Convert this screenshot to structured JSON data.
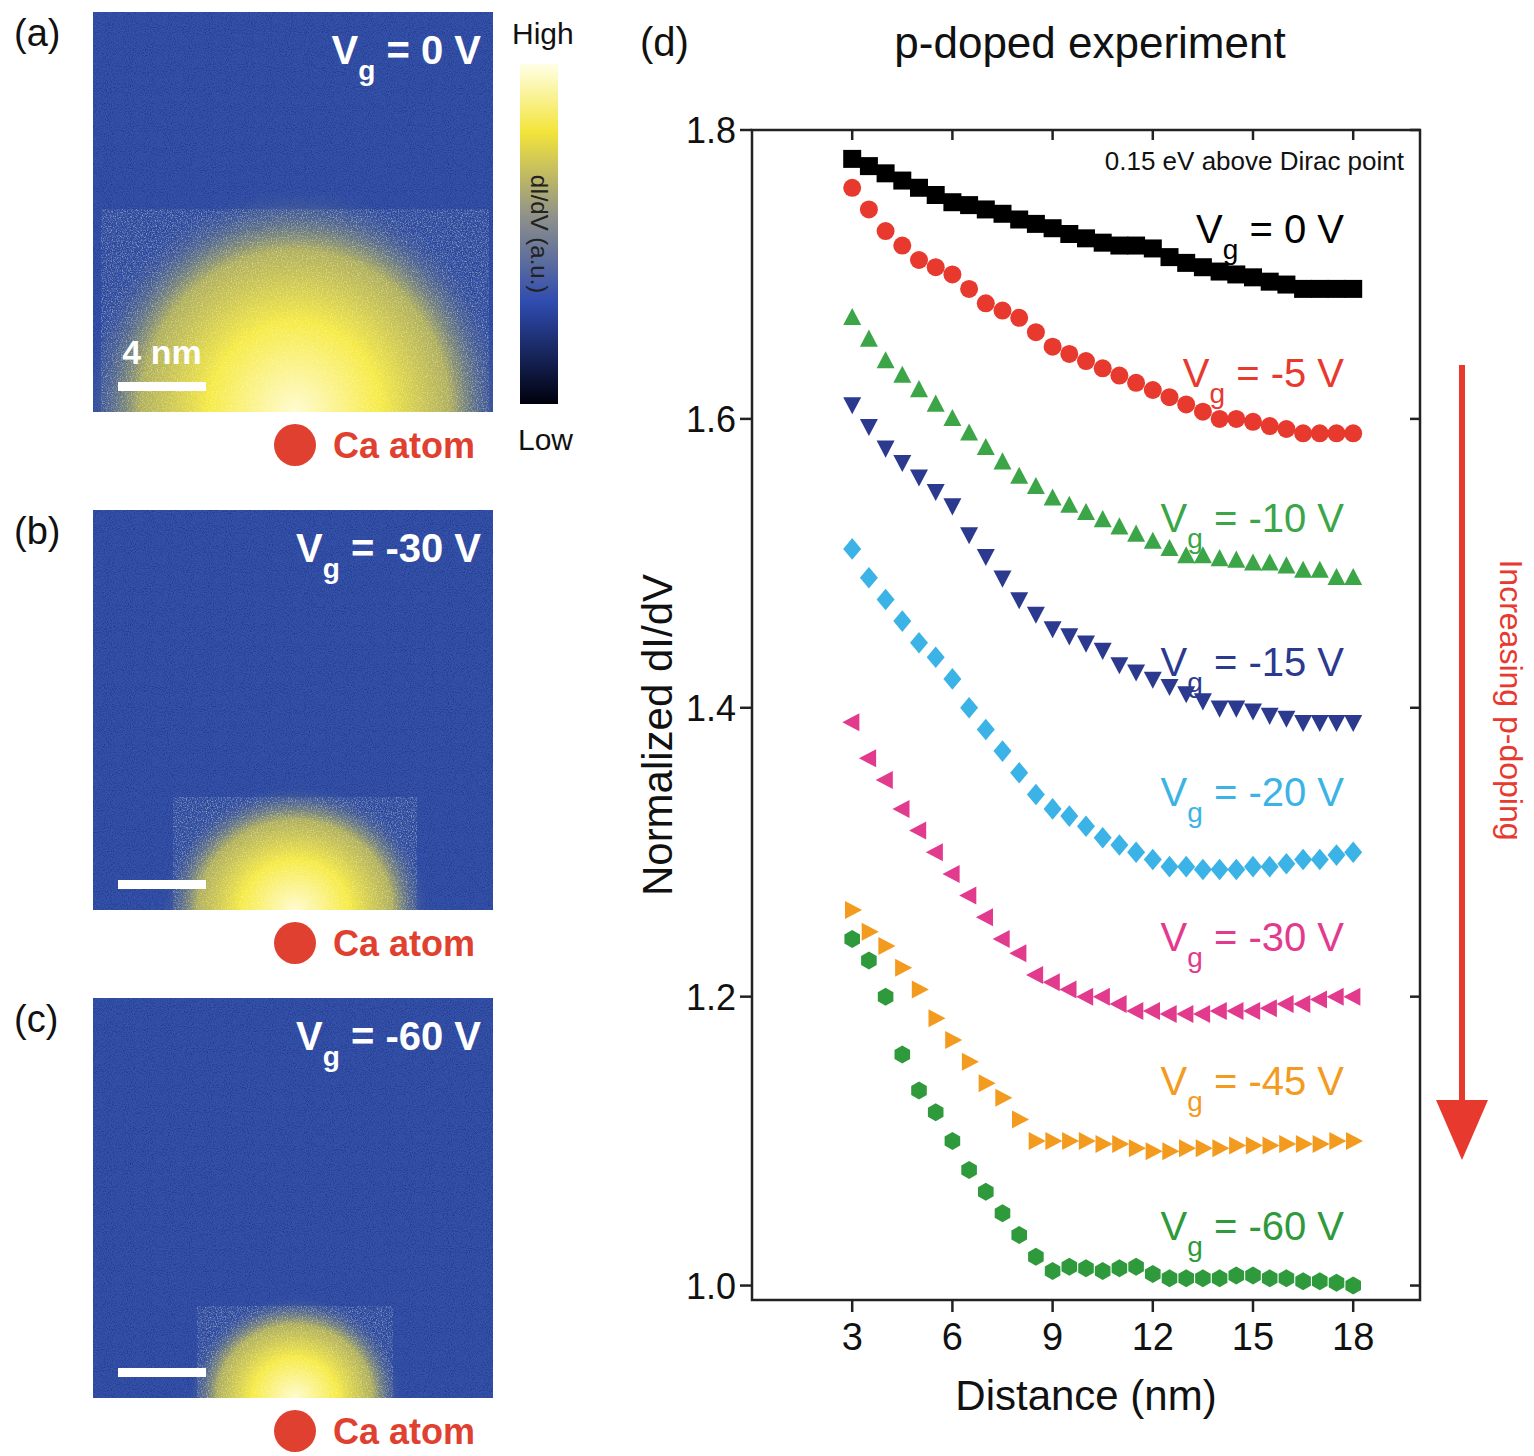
{
  "chart_data": [
    {
      "type": "image",
      "panel": "(a)",
      "title": "Vg = 0 V",
      "scale_bar": "4 nm",
      "marker_label": "Ca atom",
      "colorbar": {
        "label": "dI/dV (a.u.)",
        "high": "High",
        "low": "Low"
      }
    },
    {
      "type": "image",
      "panel": "(b)",
      "title": "Vg = -30 V",
      "marker_label": "Ca atom"
    },
    {
      "type": "image",
      "panel": "(c)",
      "title": "Vg = -60 V",
      "marker_label": "Ca atom"
    },
    {
      "type": "scatter",
      "panel": "(d)",
      "title": "p-doped experiment",
      "subtitle": "0.15 eV above Dirac point",
      "x_label": "Distance (nm)",
      "y_label": "Normalized dI/dV",
      "annotation": "Increasing p-doping",
      "xlim": [
        0,
        20
      ],
      "ylim": [
        0.99,
        1.8
      ],
      "xticks": [
        3,
        6,
        9,
        12,
        15,
        18
      ],
      "yticks": [
        {
          "value": 1,
          "label": "1.0"
        },
        1.2,
        1.4,
        1.6,
        1.8
      ],
      "x": [
        3,
        3.5,
        4,
        4.5,
        5,
        5.5,
        6,
        6.5,
        7,
        7.5,
        8,
        8.5,
        9,
        9.5,
        10,
        10.5,
        11,
        11.5,
        12,
        12.5,
        13,
        13.5,
        14,
        14.5,
        15,
        15.5,
        16,
        16.5,
        17,
        17.5,
        18
      ],
      "series": [
        {
          "name": "Vg = 0 V",
          "color": "#000000",
          "marker": "square",
          "values": [
            1.78,
            1.775,
            1.77,
            1.765,
            1.76,
            1.755,
            1.75,
            1.748,
            1.745,
            1.742,
            1.738,
            1.735,
            1.732,
            1.728,
            1.725,
            1.722,
            1.72,
            1.72,
            1.718,
            1.712,
            1.708,
            1.705,
            1.702,
            1.7,
            1.698,
            1.695,
            1.693,
            1.69,
            1.69,
            1.69,
            1.69
          ]
        },
        {
          "name": "Vg = -5 V",
          "color": "#e8392f",
          "marker": "circle",
          "values": [
            1.76,
            1.745,
            1.73,
            1.72,
            1.71,
            1.705,
            1.7,
            1.69,
            1.68,
            1.675,
            1.67,
            1.66,
            1.65,
            1.645,
            1.64,
            1.635,
            1.63,
            1.625,
            1.62,
            1.615,
            1.61,
            1.605,
            1.6,
            1.6,
            1.598,
            1.595,
            1.593,
            1.59,
            1.59,
            1.59,
            1.59
          ]
        },
        {
          "name": "Vg = -10 V",
          "color": "#3ba548",
          "marker": "triangle-up",
          "values": [
            1.67,
            1.655,
            1.64,
            1.63,
            1.62,
            1.61,
            1.6,
            1.59,
            1.58,
            1.57,
            1.56,
            1.553,
            1.545,
            1.54,
            1.535,
            1.53,
            1.525,
            1.52,
            1.515,
            1.51,
            1.505,
            1.505,
            1.503,
            1.502,
            1.5,
            1.5,
            1.498,
            1.495,
            1.495,
            1.49,
            1.49
          ]
        },
        {
          "name": "Vg = -15 V",
          "color": "#2b3a8f",
          "marker": "triangle-down",
          "values": [
            1.61,
            1.595,
            1.58,
            1.57,
            1.56,
            1.55,
            1.54,
            1.52,
            1.505,
            1.49,
            1.475,
            1.465,
            1.455,
            1.45,
            1.445,
            1.44,
            1.43,
            1.425,
            1.42,
            1.415,
            1.41,
            1.405,
            1.4,
            1.4,
            1.398,
            1.395,
            1.393,
            1.39,
            1.39,
            1.39,
            1.39
          ]
        },
        {
          "name": "Vg = -20 V",
          "color": "#3cb3e6",
          "marker": "diamond",
          "values": [
            1.51,
            1.49,
            1.475,
            1.46,
            1.445,
            1.435,
            1.42,
            1.4,
            1.385,
            1.37,
            1.355,
            1.34,
            1.33,
            1.325,
            1.318,
            1.31,
            1.305,
            1.3,
            1.295,
            1.29,
            1.29,
            1.288,
            1.288,
            1.288,
            1.29,
            1.29,
            1.292,
            1.295,
            1.295,
            1.298,
            1.3
          ]
        },
        {
          "name": "Vg = -30 V",
          "color": "#e23b8e",
          "marker": "triangle-left",
          "values": [
            1.39,
            1.365,
            1.35,
            1.33,
            1.315,
            1.3,
            1.285,
            1.27,
            1.255,
            1.24,
            1.23,
            1.215,
            1.21,
            1.205,
            1.2,
            1.2,
            1.195,
            1.19,
            1.19,
            1.188,
            1.188,
            1.188,
            1.19,
            1.19,
            1.19,
            1.192,
            1.195,
            1.195,
            1.198,
            1.2,
            1.2
          ]
        },
        {
          "name": "Vg = -45 V",
          "color": "#f39b1e",
          "marker": "triangle-right",
          "values": [
            1.26,
            1.245,
            1.235,
            1.22,
            1.205,
            1.185,
            1.17,
            1.155,
            1.14,
            1.13,
            1.115,
            1.1,
            1.1,
            1.1,
            1.1,
            1.098,
            1.098,
            1.095,
            1.093,
            1.093,
            1.095,
            1.095,
            1.095,
            1.097,
            1.097,
            1.097,
            1.098,
            1.098,
            1.098,
            1.1,
            1.1
          ]
        },
        {
          "name": "Vg = -60 V",
          "color": "#2e9a3c",
          "marker": "hexagon",
          "values": [
            1.24,
            1.225,
            1.2,
            1.16,
            1.135,
            1.12,
            1.1,
            1.08,
            1.065,
            1.05,
            1.035,
            1.02,
            1.01,
            1.013,
            1.012,
            1.01,
            1.012,
            1.013,
            1.008,
            1.005,
            1.005,
            1.005,
            1.005,
            1.007,
            1.007,
            1.005,
            1.005,
            1.003,
            1.003,
            1.002,
            1.0
          ]
        }
      ]
    }
  ]
}
